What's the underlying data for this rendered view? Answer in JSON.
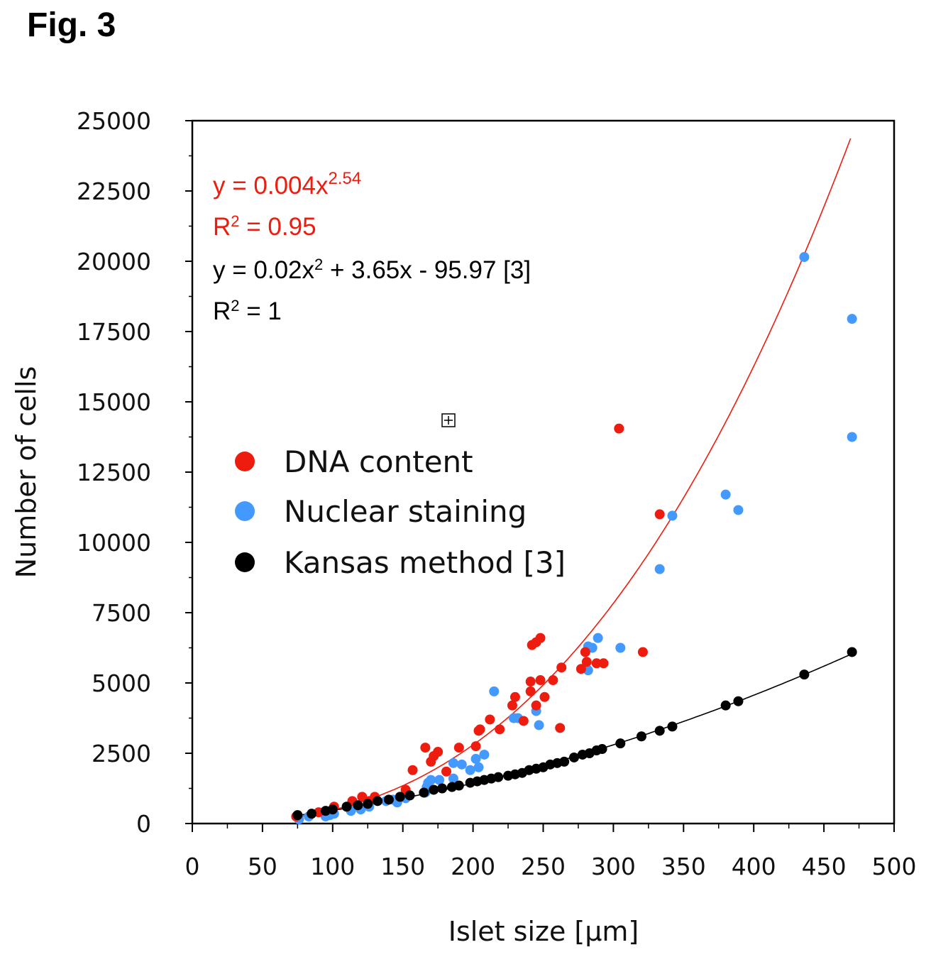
{
  "figure": {
    "label": "Fig. 3"
  },
  "chart_data": {
    "type": "scatter",
    "title": "",
    "xlabel": "Islet size [µm]",
    "ylabel": "Number of cells",
    "xlim": [
      0,
      500
    ],
    "ylim": [
      0,
      25000
    ],
    "x_ticks": [
      0,
      50,
      100,
      150,
      200,
      250,
      300,
      350,
      400,
      450,
      500
    ],
    "y_ticks": [
      0,
      2500,
      5000,
      7500,
      10000,
      12500,
      15000,
      17500,
      20000,
      22500,
      25000
    ],
    "x_tick_labels": [
      "0",
      "50",
      "100",
      "150",
      "200",
      "250",
      "300",
      "350",
      "400",
      "450",
      "500"
    ],
    "y_tick_labels": [
      "0",
      "2500",
      "5000",
      "7500",
      "10000",
      "12500",
      "15000",
      "17500",
      "20000",
      "22500",
      "25000"
    ],
    "grid": false,
    "legend_position": "center-left",
    "annotations": {
      "red_equation": {
        "main": "y = 0.004x",
        "exp": "2.54",
        "color": "#ee1c0e"
      },
      "red_r2": {
        "pre": "R",
        "sup": "2",
        "post": " = 0.95",
        "color": "#ee1c0e"
      },
      "black_equation": {
        "a": "y = 0.02x",
        "sup": "2",
        "b": " + 3.65x - 95.97 [3]",
        "color": "#000000"
      },
      "black_r2": {
        "pre": "R",
        "sup": "2",
        "post": " = 1",
        "color": "#000000"
      },
      "marker_symbol": "⊞"
    },
    "fits": [
      {
        "name": "DNA content power fit",
        "type": "power",
        "a": 0.004,
        "b": 2.54,
        "x_range": [
          75,
          470
        ],
        "color": "#ee1c0e"
      },
      {
        "name": "Kansas method quadratic fit",
        "type": "quadratic",
        "c2": 0.02,
        "c1": 3.65,
        "c0": -95.97,
        "x_range": [
          75,
          470
        ],
        "color": "#000000"
      }
    ],
    "series": [
      {
        "name": "DNA content",
        "color": "#ee1c0e",
        "points": [
          [
            74,
            250
          ],
          [
            90,
            400
          ],
          [
            101,
            600
          ],
          [
            114,
            800
          ],
          [
            121,
            950
          ],
          [
            126,
            800
          ],
          [
            130,
            950
          ],
          [
            152,
            1200
          ],
          [
            157,
            1900
          ],
          [
            166,
            2700
          ],
          [
            170,
            2200
          ],
          [
            172,
            2400
          ],
          [
            175,
            2550
          ],
          [
            181,
            1850
          ],
          [
            190,
            2700
          ],
          [
            202,
            2750
          ],
          [
            204,
            3300
          ],
          [
            205,
            3350
          ],
          [
            212,
            3700
          ],
          [
            219,
            3350
          ],
          [
            228,
            4200
          ],
          [
            230,
            4500
          ],
          [
            236,
            3650
          ],
          [
            241,
            4700
          ],
          [
            241,
            5050
          ],
          [
            242,
            6350
          ],
          [
            245,
            6450
          ],
          [
            245,
            4200
          ],
          [
            248,
            5100
          ],
          [
            248,
            6600
          ],
          [
            251,
            4500
          ],
          [
            257,
            5100
          ],
          [
            262,
            3400
          ],
          [
            263,
            5550
          ],
          [
            277,
            5500
          ],
          [
            280,
            6100
          ],
          [
            281,
            5750
          ],
          [
            288,
            5700
          ],
          [
            293,
            5700
          ],
          [
            304,
            14050
          ],
          [
            321,
            6100
          ],
          [
            333,
            11000
          ]
        ]
      },
      {
        "name": "Nuclear staining",
        "color": "#4499ff",
        "points": [
          [
            76,
            150
          ],
          [
            83,
            250
          ],
          [
            95,
            250
          ],
          [
            98,
            300
          ],
          [
            101,
            350
          ],
          [
            113,
            450
          ],
          [
            120,
            500
          ],
          [
            126,
            600
          ],
          [
            138,
            800
          ],
          [
            143,
            850
          ],
          [
            146,
            750
          ],
          [
            152,
            900
          ],
          [
            166,
            1100
          ],
          [
            167,
            1300
          ],
          [
            168,
            1450
          ],
          [
            170,
            1550
          ],
          [
            176,
            1550
          ],
          [
            186,
            2150
          ],
          [
            186,
            1600
          ],
          [
            192,
            2100
          ],
          [
            198,
            1900
          ],
          [
            202,
            2300
          ],
          [
            204,
            2000
          ],
          [
            208,
            2450
          ],
          [
            215,
            4700
          ],
          [
            229,
            3750
          ],
          [
            232,
            3750
          ],
          [
            245,
            4000
          ],
          [
            247,
            3500
          ],
          [
            282,
            5450
          ],
          [
            282,
            6300
          ],
          [
            285,
            6250
          ],
          [
            289,
            6600
          ],
          [
            305,
            6250
          ],
          [
            333,
            9050
          ],
          [
            342,
            10950
          ],
          [
            380,
            11700
          ],
          [
            389,
            11150
          ],
          [
            436,
            20150
          ],
          [
            470,
            17950
          ],
          [
            470,
            13750
          ]
        ]
      },
      {
        "name": "Kansas method [3]",
        "color": "#000000",
        "points": [
          [
            75,
            300
          ],
          [
            85,
            350
          ],
          [
            95,
            450
          ],
          [
            100,
            500
          ],
          [
            110,
            600
          ],
          [
            118,
            650
          ],
          [
            125,
            700
          ],
          [
            132,
            800
          ],
          [
            140,
            850
          ],
          [
            148,
            950
          ],
          [
            155,
            1000
          ],
          [
            165,
            1100
          ],
          [
            172,
            1200
          ],
          [
            178,
            1250
          ],
          [
            185,
            1300
          ],
          [
            190,
            1350
          ],
          [
            198,
            1450
          ],
          [
            203,
            1500
          ],
          [
            208,
            1550
          ],
          [
            213,
            1600
          ],
          [
            218,
            1650
          ],
          [
            225,
            1700
          ],
          [
            230,
            1750
          ],
          [
            235,
            1800
          ],
          [
            240,
            1900
          ],
          [
            245,
            1950
          ],
          [
            250,
            2000
          ],
          [
            255,
            2100
          ],
          [
            260,
            2150
          ],
          [
            265,
            2200
          ],
          [
            272,
            2350
          ],
          [
            278,
            2450
          ],
          [
            283,
            2500
          ],
          [
            288,
            2600
          ],
          [
            292,
            2650
          ],
          [
            305,
            2850
          ],
          [
            320,
            3100
          ],
          [
            333,
            3300
          ],
          [
            342,
            3450
          ],
          [
            380,
            4200
          ],
          [
            389,
            4350
          ],
          [
            436,
            5300
          ],
          [
            470,
            6100
          ]
        ]
      }
    ]
  }
}
